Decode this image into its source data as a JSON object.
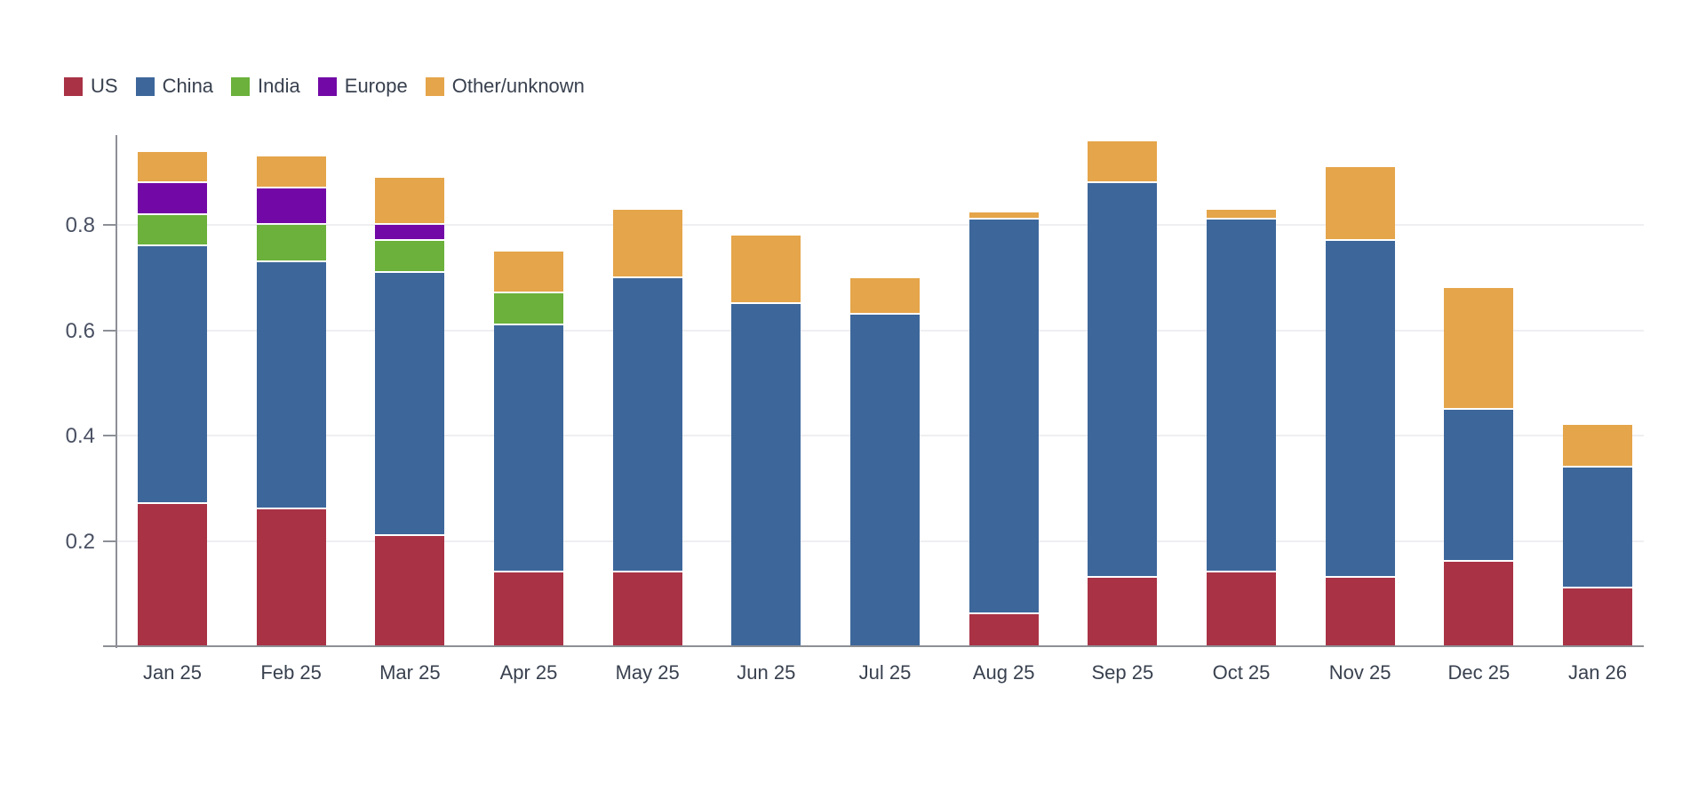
{
  "page": {
    "background": "#ffffff",
    "title": ""
  },
  "chart_data": {
    "type": "bar",
    "stacked": true,
    "title": "",
    "xlabel": "",
    "ylabel": "",
    "grid": true,
    "legend_position": "top-left",
    "ylim": [
      0,
      1.0
    ],
    "y_ticks": [
      0.2,
      0.4,
      0.6,
      0.8
    ],
    "y_tick_labels": [
      "0.2",
      "0.4",
      "0.6",
      "0.8"
    ],
    "categories": [
      "Jan 25",
      "Feb 25",
      "Mar 25",
      "Apr 25",
      "May 25",
      "Jun 25",
      "Jul 25",
      "Aug 25",
      "Sep 25",
      "Oct 25",
      "Nov 25",
      "Dec 25",
      "Jan 26"
    ],
    "stack_order_bottom_to_top": [
      "US",
      "China",
      "India",
      "Europe",
      "Other/unknown"
    ],
    "series": [
      {
        "name": "US",
        "color": "#a93245",
        "values": [
          0.27,
          0.26,
          0.21,
          0.14,
          0.14,
          0,
          0,
          0.06,
          0.13,
          0.14,
          0.13,
          0.16,
          0.11
        ]
      },
      {
        "name": "China",
        "color": "#3d679b",
        "values": [
          0.49,
          0.47,
          0.5,
          0.47,
          0.56,
          0.65,
          0.63,
          0.75,
          0.75,
          0.67,
          0.64,
          0.29,
          0.23
        ]
      },
      {
        "name": "India",
        "color": "#6bb13b",
        "values": [
          0.06,
          0.07,
          0.06,
          0.06,
          0,
          0,
          0,
          0,
          0,
          0,
          0,
          0,
          0
        ]
      },
      {
        "name": "Europe",
        "color": "#7209a6",
        "values": [
          0.06,
          0.07,
          0.03,
          0,
          0,
          0,
          0,
          0,
          0,
          0,
          0,
          0,
          0
        ]
      },
      {
        "name": "Other/unknown",
        "color": "#e5a54a",
        "values": [
          0.06,
          0.06,
          0.09,
          0.08,
          0.13,
          0.13,
          0.07,
          0.015,
          0.08,
          0.02,
          0.14,
          0.23,
          0.08
        ]
      }
    ],
    "stack_totals": [
      0.94,
      0.93,
      0.89,
      0.75,
      0.83,
      0.78,
      0.7,
      0.825,
      0.96,
      0.83,
      0.91,
      0.68,
      0.42
    ]
  }
}
